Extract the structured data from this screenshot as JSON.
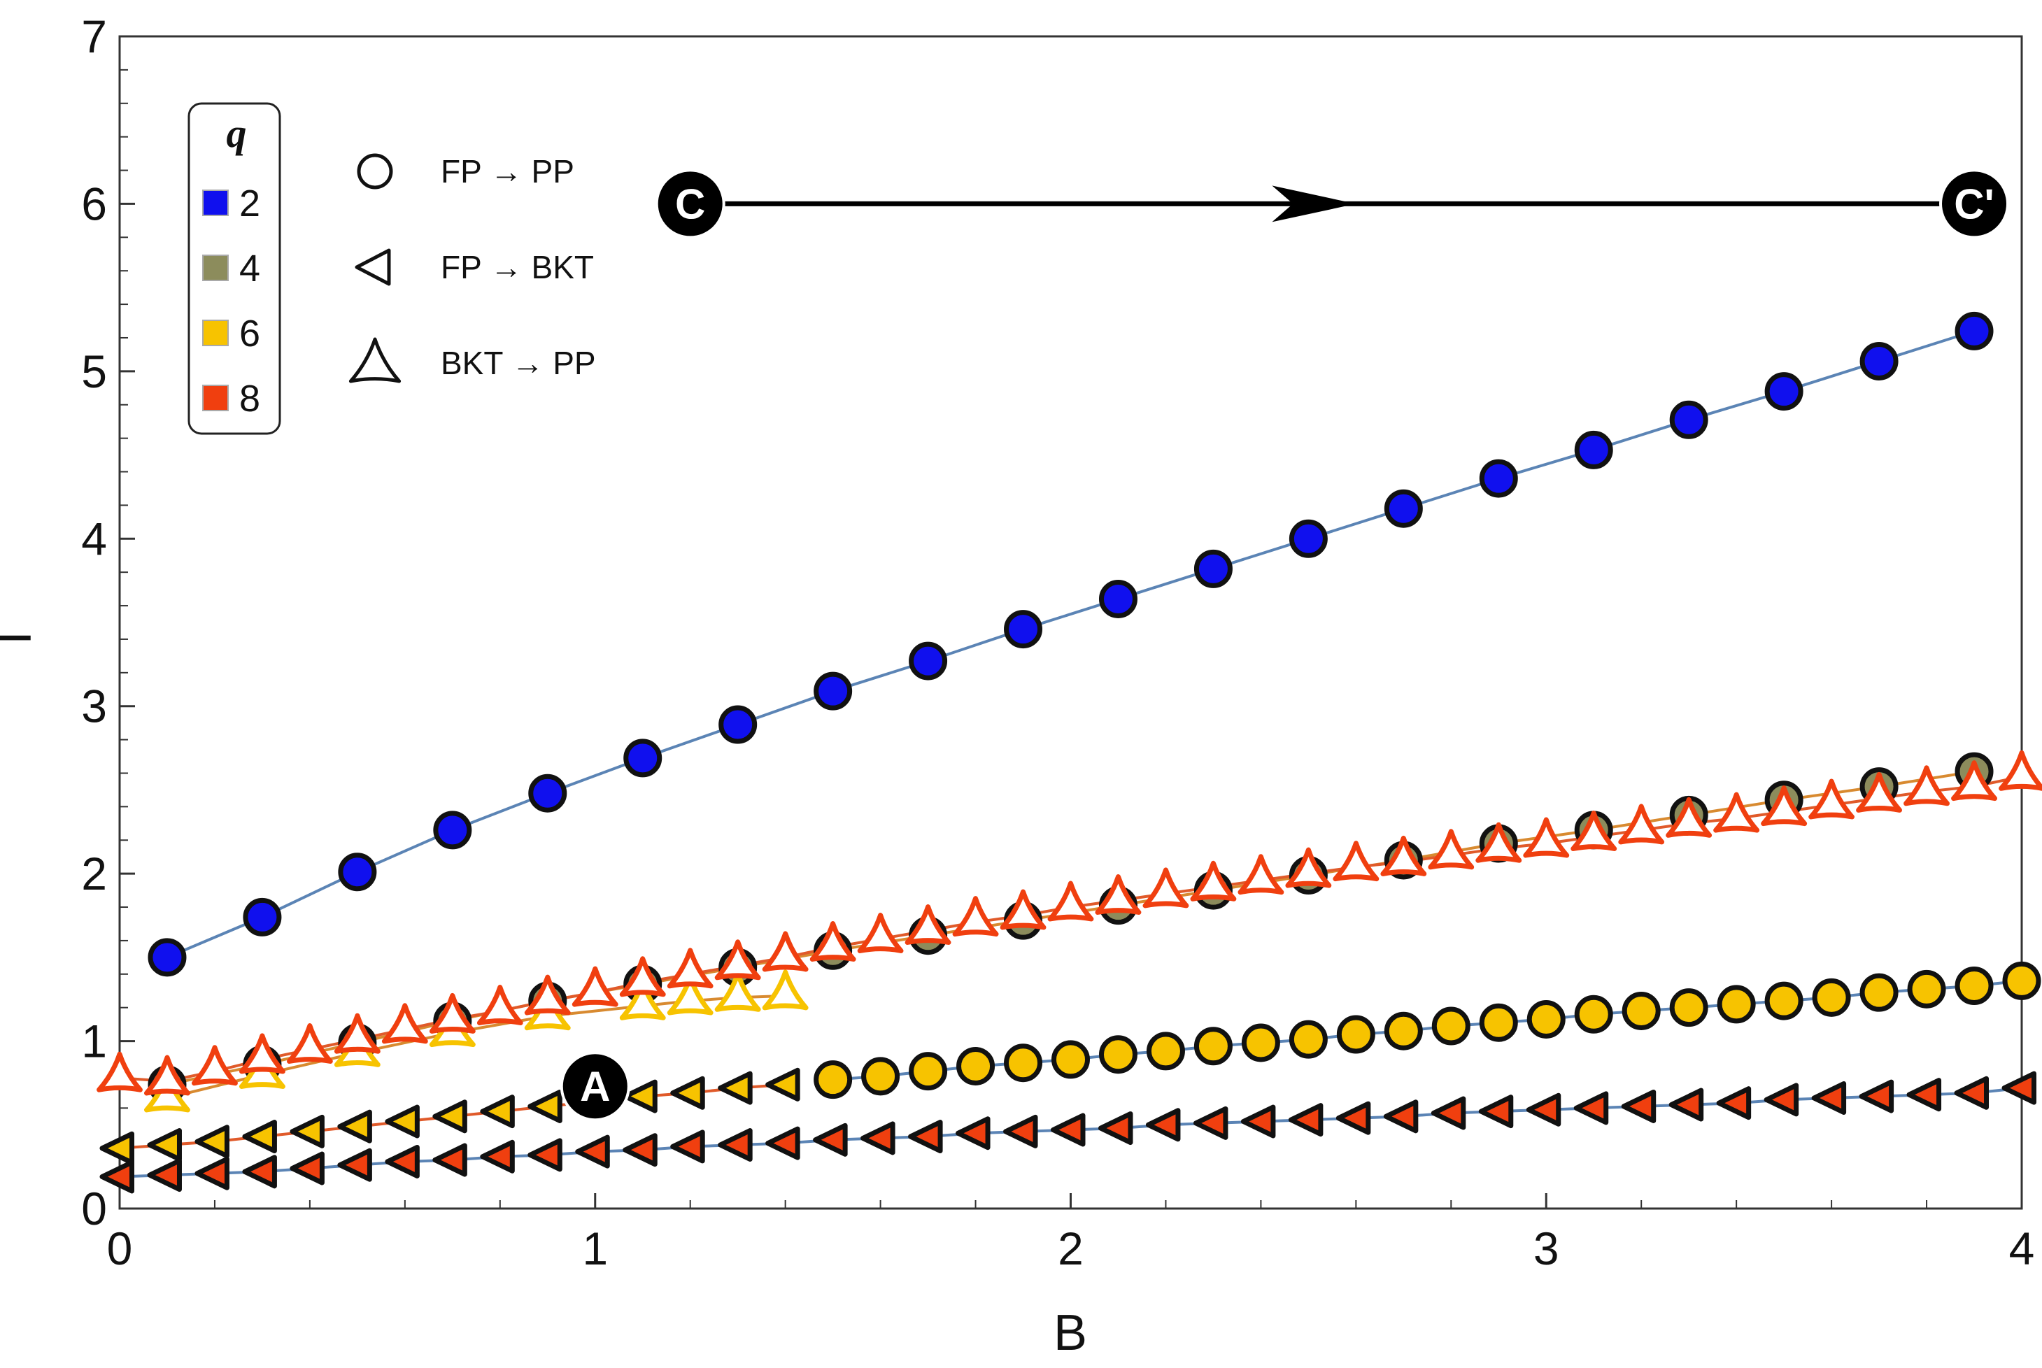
{
  "chart_data": {
    "type": "scatter",
    "title": "",
    "xlabel": "B",
    "ylabel": "T",
    "xlim": [
      0,
      4
    ],
    "ylim": [
      0,
      7
    ],
    "xticks": [
      "0",
      "1",
      "2",
      "3",
      "4"
    ],
    "yticks": [
      "0",
      "1",
      "2",
      "3",
      "4",
      "5",
      "6",
      "7"
    ],
    "colors": {
      "q2": "#1010ee",
      "q4": "#8c8c5c",
      "q6": "#f7c300",
      "q8": "#f03f0f",
      "line_blue": "#5b84b5",
      "line_orange": "#d88a30",
      "line_red": "#e05a2a"
    },
    "legend_q": {
      "title": "q",
      "entries": [
        {
          "label": "2",
          "key": "q2"
        },
        {
          "label": "4",
          "key": "q4"
        },
        {
          "label": "6",
          "key": "q6"
        },
        {
          "label": "8",
          "key": "q8"
        }
      ]
    },
    "legend_shapes": [
      {
        "shape": "circle",
        "label": "FP → PP"
      },
      {
        "shape": "triangle-left",
        "label": "FP → BKT"
      },
      {
        "shape": "tristar",
        "label": "BKT → PP"
      }
    ],
    "annotations": [
      {
        "label": "A",
        "x": 1.0,
        "y": 0.73
      },
      {
        "label": "C",
        "x": 1.2,
        "y": 6.0
      },
      {
        "label": "C'",
        "x": 3.9,
        "y": 6.0
      }
    ],
    "path": {
      "from": "C",
      "to": "C'",
      "arrow_at_x": 2.6,
      "y": 6.0
    },
    "series": [
      {
        "name": "q=2 FP → PP",
        "q": "q2",
        "marker": "circle",
        "line": "line_blue",
        "x": [
          0.1,
          0.3,
          0.5,
          0.7,
          0.9,
          1.1,
          1.3,
          1.5,
          1.7,
          1.9,
          2.1,
          2.3,
          2.5,
          2.7,
          2.9,
          3.1,
          3.3,
          3.5,
          3.7,
          3.9
        ],
        "y": [
          1.5,
          1.74,
          2.01,
          2.26,
          2.48,
          2.69,
          2.89,
          3.09,
          3.27,
          3.46,
          3.64,
          3.82,
          4.0,
          4.18,
          4.36,
          4.53,
          4.71,
          4.88,
          5.06,
          5.24
        ]
      },
      {
        "name": "q=4 FP → PP",
        "q": "q4",
        "marker": "circle",
        "line": "line_orange",
        "x": [
          0.1,
          0.3,
          0.5,
          0.7,
          0.9,
          1.1,
          1.3,
          1.5,
          1.7,
          1.9,
          2.1,
          2.3,
          2.5,
          2.7,
          2.9,
          3.1,
          3.3,
          3.5,
          3.7,
          3.9
        ],
        "y": [
          0.74,
          0.86,
          0.99,
          1.12,
          1.24,
          1.34,
          1.44,
          1.54,
          1.63,
          1.72,
          1.81,
          1.9,
          1.99,
          2.08,
          2.18,
          2.26,
          2.35,
          2.44,
          2.52,
          2.61
        ]
      },
      {
        "name": "q=6 BKT → PP",
        "q": "q6",
        "marker": "tristar",
        "line": "line_orange",
        "x": [
          0.1,
          0.3,
          0.5,
          0.7,
          0.9,
          1.1,
          1.2,
          1.3,
          1.4
        ],
        "y": [
          0.66,
          0.8,
          0.93,
          1.05,
          1.15,
          1.21,
          1.24,
          1.26,
          1.27
        ]
      },
      {
        "name": "q=8 BKT → PP",
        "q": "q8",
        "marker": "tristar",
        "line": "line_red",
        "x": [
          0.0,
          0.1,
          0.2,
          0.3,
          0.4,
          0.5,
          0.6,
          0.7,
          0.8,
          0.9,
          1.0,
          1.1,
          1.2,
          1.3,
          1.4,
          1.5,
          1.6,
          1.7,
          1.8,
          1.9,
          2.0,
          2.1,
          2.2,
          2.3,
          2.4,
          2.5,
          2.6,
          2.7,
          2.8,
          2.9,
          3.0,
          3.1,
          3.2,
          3.3,
          3.4,
          3.5,
          3.6,
          3.7,
          3.8,
          3.9,
          4.0
        ],
        "y": [
          0.78,
          0.76,
          0.82,
          0.89,
          0.95,
          1.01,
          1.07,
          1.13,
          1.18,
          1.24,
          1.29,
          1.35,
          1.4,
          1.45,
          1.5,
          1.56,
          1.61,
          1.66,
          1.71,
          1.75,
          1.8,
          1.84,
          1.88,
          1.92,
          1.96,
          2.0,
          2.04,
          2.07,
          2.11,
          2.15,
          2.18,
          2.22,
          2.26,
          2.3,
          2.33,
          2.37,
          2.41,
          2.45,
          2.49,
          2.52,
          2.58
        ]
      },
      {
        "name": "q=6 FP → BKT",
        "q": "q6",
        "marker": "triangle-left",
        "line": "line_red",
        "x": [
          0.0,
          0.1,
          0.2,
          0.3,
          0.4,
          0.5,
          0.6,
          0.7,
          0.8,
          0.9,
          1.1,
          1.2,
          1.3,
          1.4
        ],
        "y": [
          0.36,
          0.38,
          0.4,
          0.43,
          0.46,
          0.49,
          0.52,
          0.55,
          0.58,
          0.61,
          0.67,
          0.69,
          0.72,
          0.74
        ]
      },
      {
        "name": "q=6 FP → PP",
        "q": "q6",
        "marker": "circle",
        "line": "line_blue",
        "x": [
          1.5,
          1.6,
          1.7,
          1.8,
          1.9,
          2.0,
          2.1,
          2.2,
          2.3,
          2.4,
          2.5,
          2.6,
          2.7,
          2.8,
          2.9,
          3.0,
          3.1,
          3.2,
          3.3,
          3.4,
          3.5,
          3.6,
          3.7,
          3.8,
          3.9,
          4.0
        ],
        "y": [
          0.77,
          0.79,
          0.82,
          0.85,
          0.87,
          0.89,
          0.92,
          0.94,
          0.97,
          0.99,
          1.01,
          1.04,
          1.06,
          1.09,
          1.11,
          1.13,
          1.16,
          1.18,
          1.2,
          1.22,
          1.24,
          1.26,
          1.29,
          1.31,
          1.33,
          1.36
        ]
      },
      {
        "name": "q=8 FP → BKT",
        "q": "q8",
        "marker": "triangle-left",
        "line": "line_blue",
        "x": [
          0.0,
          0.1,
          0.2,
          0.3,
          0.4,
          0.5,
          0.6,
          0.7,
          0.8,
          0.9,
          1.0,
          1.1,
          1.2,
          1.3,
          1.4,
          1.5,
          1.6,
          1.7,
          1.8,
          1.9,
          2.0,
          2.1,
          2.2,
          2.3,
          2.4,
          2.5,
          2.6,
          2.7,
          2.8,
          2.9,
          3.0,
          3.1,
          3.2,
          3.3,
          3.4,
          3.5,
          3.6,
          3.7,
          3.8,
          3.9,
          4.0
        ],
        "y": [
          0.19,
          0.2,
          0.21,
          0.22,
          0.24,
          0.26,
          0.28,
          0.29,
          0.31,
          0.32,
          0.34,
          0.35,
          0.37,
          0.38,
          0.39,
          0.41,
          0.42,
          0.43,
          0.45,
          0.46,
          0.47,
          0.48,
          0.5,
          0.51,
          0.52,
          0.53,
          0.54,
          0.55,
          0.57,
          0.58,
          0.59,
          0.6,
          0.61,
          0.62,
          0.63,
          0.65,
          0.66,
          0.67,
          0.68,
          0.69,
          0.72
        ]
      }
    ]
  }
}
